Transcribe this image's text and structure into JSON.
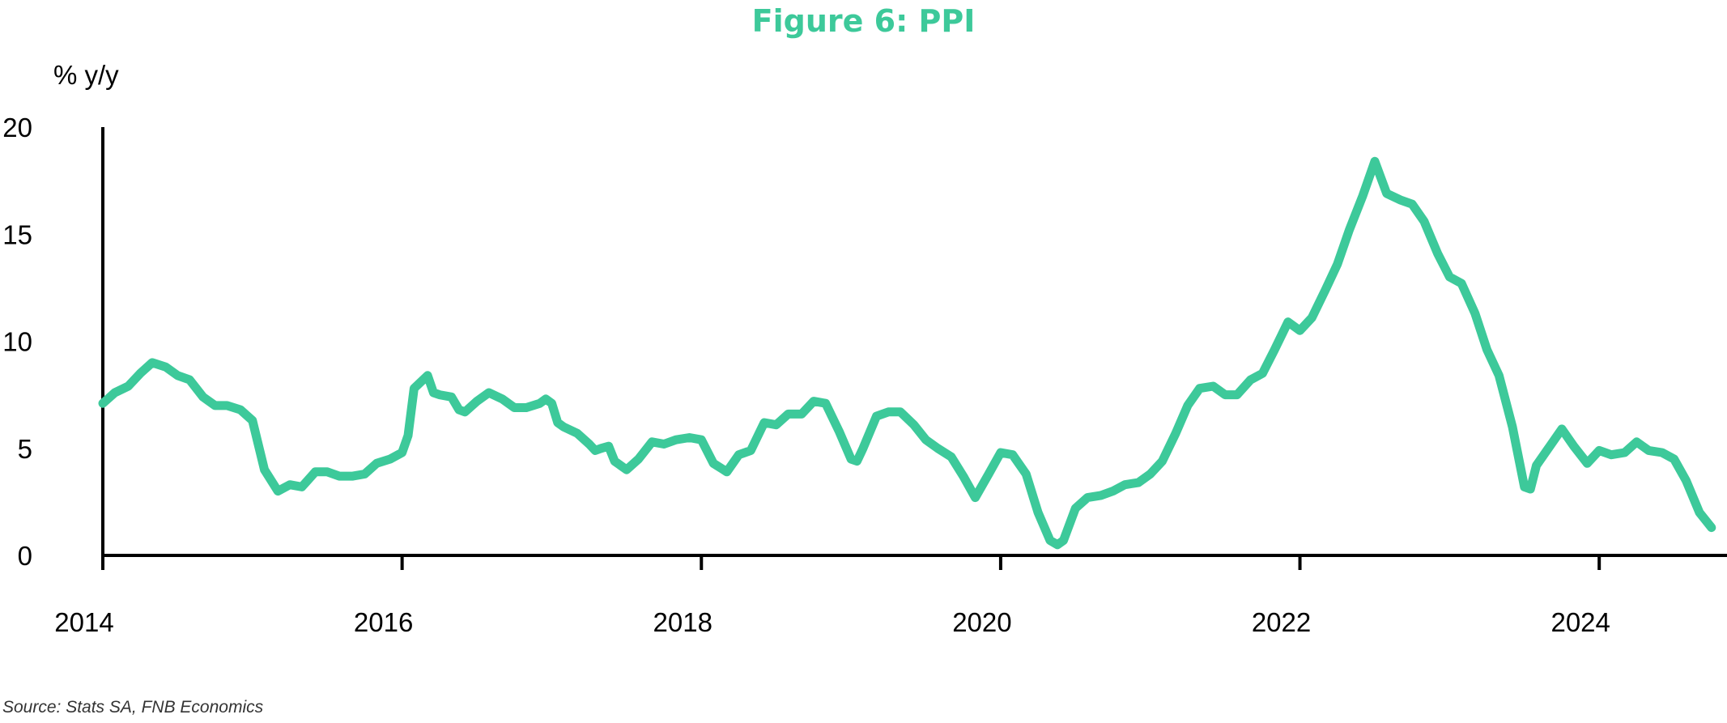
{
  "chart_data": {
    "type": "line",
    "title": "Figure 6: PPI",
    "ylabel": "% y/y",
    "xlabel": "",
    "ylim": [
      0,
      20
    ],
    "xlim": [
      2014,
      2024.75
    ],
    "yticks": [
      "0",
      "5",
      "10",
      "15",
      "20"
    ],
    "xticks": [
      "2014",
      "2016",
      "2018",
      "2020",
      "2022",
      "2024"
    ],
    "grid": false,
    "legend": "none",
    "series": [
      {
        "color": "#3dc99a",
        "points": [
          [
            2014.0,
            7.1
          ],
          [
            2014.08,
            7.6
          ],
          [
            2014.17,
            7.9
          ],
          [
            2014.25,
            8.5
          ],
          [
            2014.33,
            9.0
          ],
          [
            2014.42,
            8.8
          ],
          [
            2014.5,
            8.4
          ],
          [
            2014.58,
            8.2
          ],
          [
            2014.67,
            7.4
          ],
          [
            2014.75,
            7.0
          ],
          [
            2014.83,
            7.0
          ],
          [
            2014.92,
            6.8
          ],
          [
            2015.0,
            6.3
          ],
          [
            2015.08,
            4.0
          ],
          [
            2015.17,
            3.0
          ],
          [
            2015.25,
            3.3
          ],
          [
            2015.33,
            3.2
          ],
          [
            2015.42,
            3.9
          ],
          [
            2015.5,
            3.9
          ],
          [
            2015.58,
            3.7
          ],
          [
            2015.67,
            3.7
          ],
          [
            2015.75,
            3.8
          ],
          [
            2015.83,
            4.3
          ],
          [
            2015.92,
            4.5
          ],
          [
            2016.0,
            4.8
          ],
          [
            2016.04,
            5.6
          ],
          [
            2016.08,
            7.8
          ],
          [
            2016.17,
            8.4
          ],
          [
            2016.21,
            7.6
          ],
          [
            2016.25,
            7.5
          ],
          [
            2016.33,
            7.4
          ],
          [
            2016.38,
            6.8
          ],
          [
            2016.42,
            6.7
          ],
          [
            2016.5,
            7.2
          ],
          [
            2016.58,
            7.6
          ],
          [
            2016.67,
            7.3
          ],
          [
            2016.75,
            6.9
          ],
          [
            2016.83,
            6.9
          ],
          [
            2016.92,
            7.1
          ],
          [
            2016.96,
            7.3
          ],
          [
            2017.0,
            7.1
          ],
          [
            2017.04,
            6.2
          ],
          [
            2017.08,
            6.0
          ],
          [
            2017.17,
            5.7
          ],
          [
            2017.25,
            5.2
          ],
          [
            2017.29,
            4.9
          ],
          [
            2017.33,
            5.0
          ],
          [
            2017.38,
            5.1
          ],
          [
            2017.42,
            4.4
          ],
          [
            2017.5,
            4.0
          ],
          [
            2017.58,
            4.5
          ],
          [
            2017.67,
            5.3
          ],
          [
            2017.75,
            5.2
          ],
          [
            2017.83,
            5.4
          ],
          [
            2017.92,
            5.5
          ],
          [
            2018.0,
            5.4
          ],
          [
            2018.08,
            4.3
          ],
          [
            2018.17,
            3.9
          ],
          [
            2018.25,
            4.7
          ],
          [
            2018.33,
            4.9
          ],
          [
            2018.42,
            6.2
          ],
          [
            2018.5,
            6.1
          ],
          [
            2018.58,
            6.6
          ],
          [
            2018.67,
            6.6
          ],
          [
            2018.75,
            7.2
          ],
          [
            2018.83,
            7.1
          ],
          [
            2018.92,
            5.8
          ],
          [
            2019.0,
            4.5
          ],
          [
            2019.04,
            4.4
          ],
          [
            2019.08,
            5.0
          ],
          [
            2019.17,
            6.5
          ],
          [
            2019.25,
            6.7
          ],
          [
            2019.33,
            6.7
          ],
          [
            2019.42,
            6.1
          ],
          [
            2019.5,
            5.4
          ],
          [
            2019.58,
            5.0
          ],
          [
            2019.67,
            4.6
          ],
          [
            2019.75,
            3.7
          ],
          [
            2019.83,
            2.7
          ],
          [
            2019.92,
            3.8
          ],
          [
            2020.0,
            4.8
          ],
          [
            2020.08,
            4.7
          ],
          [
            2020.17,
            3.8
          ],
          [
            2020.25,
            2.0
          ],
          [
            2020.33,
            0.7
          ],
          [
            2020.38,
            0.5
          ],
          [
            2020.42,
            0.7
          ],
          [
            2020.5,
            2.2
          ],
          [
            2020.58,
            2.7
          ],
          [
            2020.67,
            2.8
          ],
          [
            2020.75,
            3.0
          ],
          [
            2020.83,
            3.3
          ],
          [
            2020.92,
            3.4
          ],
          [
            2021.0,
            3.8
          ],
          [
            2021.08,
            4.4
          ],
          [
            2021.17,
            5.7
          ],
          [
            2021.25,
            7.0
          ],
          [
            2021.33,
            7.8
          ],
          [
            2021.42,
            7.9
          ],
          [
            2021.5,
            7.5
          ],
          [
            2021.58,
            7.5
          ],
          [
            2021.67,
            8.2
          ],
          [
            2021.75,
            8.5
          ],
          [
            2021.83,
            9.6
          ],
          [
            2021.92,
            10.9
          ],
          [
            2022.0,
            10.5
          ],
          [
            2022.08,
            11.1
          ],
          [
            2022.17,
            12.4
          ],
          [
            2022.25,
            13.6
          ],
          [
            2022.33,
            15.2
          ],
          [
            2022.42,
            16.8
          ],
          [
            2022.5,
            18.4
          ],
          [
            2022.58,
            16.9
          ],
          [
            2022.67,
            16.6
          ],
          [
            2022.75,
            16.4
          ],
          [
            2022.83,
            15.6
          ],
          [
            2022.92,
            14.1
          ],
          [
            2023.0,
            13.0
          ],
          [
            2023.08,
            12.7
          ],
          [
            2023.17,
            11.3
          ],
          [
            2023.25,
            9.6
          ],
          [
            2023.33,
            8.4
          ],
          [
            2023.42,
            6.0
          ],
          [
            2023.5,
            3.2
          ],
          [
            2023.54,
            3.1
          ],
          [
            2023.58,
            4.2
          ],
          [
            2023.67,
            5.1
          ],
          [
            2023.75,
            5.9
          ],
          [
            2023.83,
            5.1
          ],
          [
            2023.92,
            4.3
          ],
          [
            2024.0,
            4.9
          ],
          [
            2024.08,
            4.7
          ],
          [
            2024.17,
            4.8
          ],
          [
            2024.25,
            5.3
          ],
          [
            2024.33,
            4.9
          ],
          [
            2024.42,
            4.8
          ],
          [
            2024.5,
            4.5
          ],
          [
            2024.58,
            3.5
          ],
          [
            2024.67,
            2.0
          ],
          [
            2024.75,
            1.3
          ]
        ]
      }
    ]
  },
  "source": "Source: Stats SA, FNB Economics"
}
